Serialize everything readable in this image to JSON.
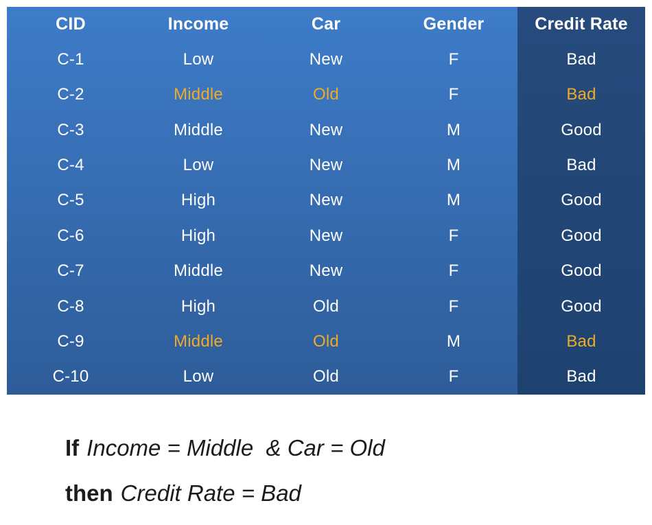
{
  "colors": {
    "table_gradient_top": "#3e7cc9",
    "table_gradient_bottom": "#2e5c99",
    "credit_column_top": "#264b7c",
    "credit_column_bottom": "#1e4270",
    "highlight_text": "#efab27",
    "cell_text": "#ffffff",
    "rule_text": "#1c1c1c"
  },
  "table": {
    "columns": [
      "CID",
      "Income",
      "Car",
      "Gender",
      "Credit Rate"
    ],
    "rows": [
      {
        "cid": "C-1",
        "income": "Low",
        "car": "New",
        "gender": "F",
        "credit": "Bad",
        "highlight_cells": []
      },
      {
        "cid": "C-2",
        "income": "Middle",
        "car": "Old",
        "gender": "F",
        "credit": "Bad",
        "highlight_cells": [
          "income",
          "car",
          "credit"
        ]
      },
      {
        "cid": "C-3",
        "income": "Middle",
        "car": "New",
        "gender": "M",
        "credit": "Good",
        "highlight_cells": []
      },
      {
        "cid": "C-4",
        "income": "Low",
        "car": "New",
        "gender": "M",
        "credit": "Bad",
        "highlight_cells": []
      },
      {
        "cid": "C-5",
        "income": "High",
        "car": "New",
        "gender": "M",
        "credit": "Good",
        "highlight_cells": []
      },
      {
        "cid": "C-6",
        "income": "High",
        "car": "New",
        "gender": "F",
        "credit": "Good",
        "highlight_cells": []
      },
      {
        "cid": "C-7",
        "income": "Middle",
        "car": "New",
        "gender": "F",
        "credit": "Good",
        "highlight_cells": []
      },
      {
        "cid": "C-8",
        "income": "High",
        "car": "Old",
        "gender": "F",
        "credit": "Good",
        "highlight_cells": []
      },
      {
        "cid": "C-9",
        "income": "Middle",
        "car": "Old",
        "gender": "M",
        "credit": "Bad",
        "highlight_cells": [
          "income",
          "car",
          "credit"
        ]
      },
      {
        "cid": "C-10",
        "income": "Low",
        "car": "Old",
        "gender": "F",
        "credit": "Bad",
        "highlight_cells": []
      }
    ]
  },
  "rule": {
    "if_word": "If",
    "condition": "Income = Middle  & Car = Old",
    "then_word": "then",
    "result": "Credit Rate = Bad"
  },
  "chart_data": {
    "type": "table",
    "title": "",
    "columns": [
      "CID",
      "Income",
      "Car",
      "Gender",
      "Credit Rate"
    ],
    "rows": [
      [
        "C-1",
        "Low",
        "New",
        "F",
        "Bad"
      ],
      [
        "C-2",
        "Middle",
        "Old",
        "F",
        "Bad"
      ],
      [
        "C-3",
        "Middle",
        "New",
        "M",
        "Good"
      ],
      [
        "C-4",
        "Low",
        "New",
        "M",
        "Bad"
      ],
      [
        "C-5",
        "High",
        "New",
        "M",
        "Good"
      ],
      [
        "C-6",
        "High",
        "New",
        "F",
        "Good"
      ],
      [
        "C-7",
        "Middle",
        "New",
        "F",
        "Good"
      ],
      [
        "C-8",
        "High",
        "Old",
        "F",
        "Good"
      ],
      [
        "C-9",
        "Middle",
        "Old",
        "M",
        "Bad"
      ],
      [
        "C-10",
        "Low",
        "Old",
        "F",
        "Bad"
      ]
    ],
    "highlights": [
      {
        "row": "C-2",
        "cells": [
          "Income",
          "Car",
          "Credit Rate"
        ],
        "color": "#efab27"
      },
      {
        "row": "C-9",
        "cells": [
          "Income",
          "Car",
          "Credit Rate"
        ],
        "color": "#efab27"
      }
    ],
    "annotation": "If Income = Middle  & Car = Old then Credit Rate = Bad"
  }
}
